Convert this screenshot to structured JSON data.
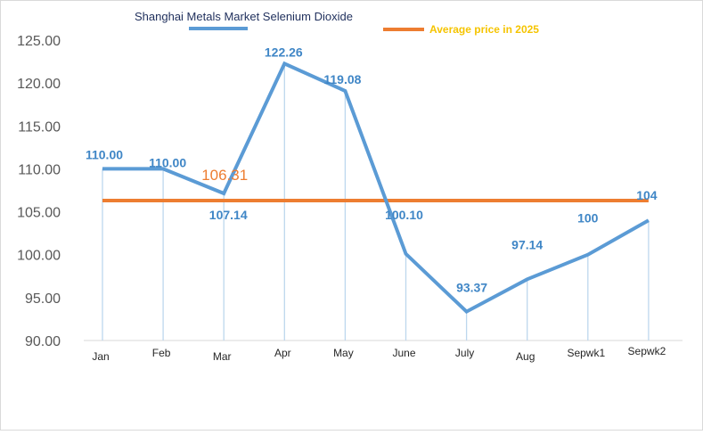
{
  "chart_data": {
    "type": "line",
    "title": "Shanghai Metals Market Selenium Dioxide",
    "categories": [
      "Jan",
      "Feb",
      "Mar",
      "Apr",
      "May",
      "June",
      "July",
      "Aug",
      "Sepwk1",
      "Sepwk2"
    ],
    "series": [
      {
        "name": "",
        "color": "#5b9bd5",
        "values": [
          110.0,
          110.0,
          107.14,
          122.26,
          119.08,
          100.1,
          93.37,
          97.14,
          100,
          104
        ],
        "labels": [
          "110.00",
          "110.00",
          "107.14",
          "122.26",
          "119.08",
          "100.10",
          "93.37",
          "97.14",
          "100",
          "104"
        ]
      },
      {
        "name": "Average price in 2025",
        "color": "#ed7d31",
        "value": 106.31,
        "label": "106.31"
      }
    ],
    "yticks": [
      "90.00",
      "95.00",
      "100.00",
      "105.00",
      "110.00",
      "115.00",
      "120.00",
      "125.00"
    ],
    "ylim": [
      90,
      125
    ],
    "grid": false,
    "legend_position": "top"
  }
}
